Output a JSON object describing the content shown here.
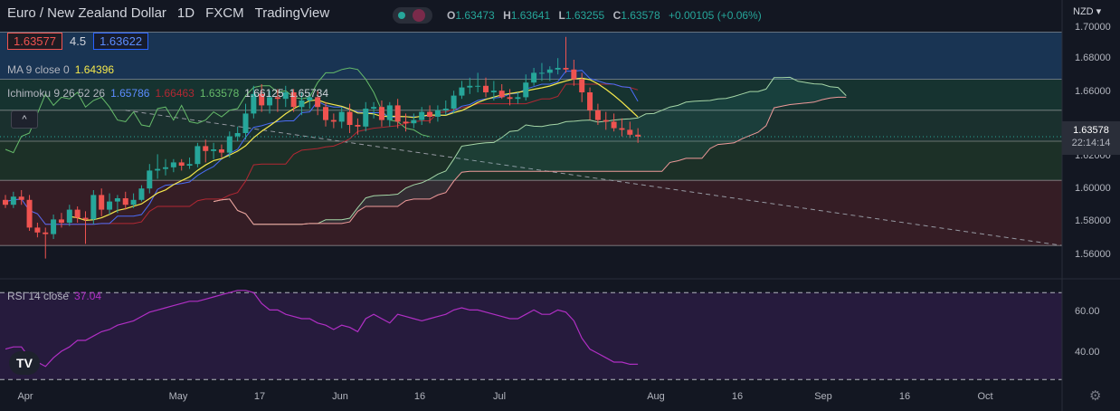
{
  "header": {
    "symbol": "Euro / New Zealand Dollar",
    "interval": "1D",
    "exchange": "FXCM",
    "platform": "TradingView",
    "ohlc": {
      "o_key": "O",
      "o": "1.63473",
      "h_key": "H",
      "h": "1.63641",
      "l_key": "L",
      "l": "1.63255",
      "c_key": "C",
      "c": "1.63578",
      "change": "+0.00105 (+0.06%)"
    },
    "currency": "NZD"
  },
  "quote": {
    "bid": "1.63577",
    "spread": "4.5",
    "ask": "1.63622"
  },
  "indicators": {
    "ma_label": "MA 9 close 0",
    "ma_value": "1.64396",
    "ichimoku_label": "Ichimoku 9 26 52 26",
    "ichimoku_values": [
      "1.65786",
      "1.66463",
      "1.63578",
      "1.66125",
      "1.65734"
    ],
    "rsi_label": "RSI 14 close",
    "rsi_value": "37.04"
  },
  "last_price": {
    "price": "1.63578",
    "countdown": "22:14:14"
  },
  "collapse_glyph": "^",
  "logo_text": "TV",
  "colors": {
    "background": "#131722",
    "up": "#26a69a",
    "down": "#ef5350",
    "ma": "#f5e84c",
    "tenkan": "#4a6cf7",
    "kijun": "#b22833",
    "chikou": "#66bb6a",
    "span_a": "#a5d6a7",
    "span_b": "#ef9a9a",
    "rsi": "#b02fc4"
  },
  "chart_data": [
    {
      "type": "candlestick",
      "title": "Euro / New Zealand Dollar, 1D, FXCM",
      "y_ticks": [
        "1.70000",
        "1.68000",
        "1.66000",
        "1.64000",
        "1.62000",
        "1.60000",
        "1.58000",
        "1.56000"
      ],
      "ylim": [
        1.553,
        1.703
      ],
      "x_ticks": [
        "Apr",
        "May",
        "17",
        "Jun",
        "16",
        "Jul",
        "Aug",
        "16",
        "Sep",
        "16",
        "Oct"
      ],
      "zones": [
        {
          "from": 1.671,
          "to": 1.7,
          "color": "#1b3a5c"
        },
        {
          "from": 1.652,
          "to": 1.671,
          "color": "#173832"
        },
        {
          "from": 1.633,
          "to": 1.652,
          "color": "#1c3530"
        },
        {
          "from": 1.609,
          "to": 1.633,
          "color": "#1e3528"
        },
        {
          "from": 1.569,
          "to": 1.609,
          "color": "#3c1f26"
        }
      ],
      "trendline": {
        "from_index": 15,
        "from_value": 1.652,
        "to_index": 132,
        "to_value": 1.569
      },
      "open": [
        1.597,
        1.594,
        1.599,
        1.597,
        1.58,
        1.577,
        1.576,
        1.585,
        1.583,
        1.591,
        1.586,
        1.585,
        1.6,
        1.591,
        1.596,
        1.598,
        1.594,
        1.597,
        1.604,
        1.615,
        1.616,
        1.617,
        1.62,
        1.618,
        1.619,
        1.63,
        1.627,
        1.628,
        1.626,
        1.636,
        1.638,
        1.65,
        1.662,
        1.655,
        1.66,
        1.659,
        1.663,
        1.654,
        1.658,
        1.66,
        1.654,
        1.646,
        1.645,
        1.651,
        1.643,
        1.642,
        1.653,
        1.654,
        1.646,
        1.655,
        1.645,
        1.644,
        1.646,
        1.651,
        1.648,
        1.652,
        1.653,
        1.661,
        1.666,
        1.667,
        1.667,
        1.663,
        1.664,
        1.66,
        1.659,
        1.66,
        1.669,
        1.675,
        1.675,
        1.677,
        1.678,
        1.677,
        1.671,
        1.663,
        1.652,
        1.646,
        1.645,
        1.641,
        1.64,
        1.637
      ],
      "high": [
        1.6,
        1.602,
        1.603,
        1.6,
        1.583,
        1.58,
        1.588,
        1.589,
        1.594,
        1.593,
        1.59,
        1.603,
        1.604,
        1.601,
        1.6,
        1.602,
        1.601,
        1.606,
        1.619,
        1.625,
        1.622,
        1.622,
        1.622,
        1.623,
        1.632,
        1.634,
        1.632,
        1.631,
        1.639,
        1.642,
        1.656,
        1.667,
        1.668,
        1.664,
        1.665,
        1.667,
        1.665,
        1.663,
        1.663,
        1.664,
        1.657,
        1.65,
        1.654,
        1.656,
        1.647,
        1.657,
        1.657,
        1.658,
        1.657,
        1.659,
        1.65,
        1.65,
        1.654,
        1.655,
        1.655,
        1.658,
        1.664,
        1.67,
        1.672,
        1.675,
        1.672,
        1.67,
        1.668,
        1.665,
        1.663,
        1.674,
        1.678,
        1.681,
        1.679,
        1.684,
        1.697,
        1.683,
        1.675,
        1.666,
        1.656,
        1.651,
        1.65,
        1.647,
        1.645,
        1.641
      ],
      "low": [
        1.592,
        1.592,
        1.594,
        1.578,
        1.574,
        1.561,
        1.573,
        1.58,
        1.581,
        1.583,
        1.57,
        1.582,
        1.587,
        1.588,
        1.589,
        1.591,
        1.592,
        1.596,
        1.601,
        1.61,
        1.612,
        1.614,
        1.615,
        1.616,
        1.617,
        1.62,
        1.622,
        1.623,
        1.623,
        1.633,
        1.634,
        1.647,
        1.651,
        1.65,
        1.651,
        1.654,
        1.651,
        1.649,
        1.653,
        1.649,
        1.642,
        1.641,
        1.641,
        1.638,
        1.637,
        1.639,
        1.647,
        1.642,
        1.642,
        1.641,
        1.639,
        1.641,
        1.643,
        1.644,
        1.645,
        1.649,
        1.65,
        1.659,
        1.662,
        1.663,
        1.66,
        1.658,
        1.659,
        1.655,
        1.656,
        1.658,
        1.667,
        1.67,
        1.67,
        1.674,
        1.675,
        1.667,
        1.657,
        1.646,
        1.643,
        1.64,
        1.639,
        1.636,
        1.635,
        1.632
      ],
      "close": [
        1.594,
        1.599,
        1.597,
        1.58,
        1.577,
        1.576,
        1.585,
        1.583,
        1.591,
        1.586,
        1.585,
        1.6,
        1.591,
        1.596,
        1.598,
        1.594,
        1.597,
        1.604,
        1.615,
        1.616,
        1.617,
        1.62,
        1.618,
        1.619,
        1.63,
        1.627,
        1.628,
        1.626,
        1.636,
        1.638,
        1.65,
        1.662,
        1.655,
        1.66,
        1.659,
        1.663,
        1.654,
        1.658,
        1.66,
        1.654,
        1.646,
        1.645,
        1.651,
        1.643,
        1.642,
        1.653,
        1.654,
        1.646,
        1.655,
        1.645,
        1.644,
        1.646,
        1.651,
        1.648,
        1.652,
        1.653,
        1.661,
        1.666,
        1.667,
        1.667,
        1.663,
        1.664,
        1.66,
        1.659,
        1.66,
        1.669,
        1.675,
        1.675,
        1.677,
        1.678,
        1.677,
        1.671,
        1.663,
        1.652,
        1.646,
        1.645,
        1.641,
        1.64,
        1.637,
        1.6358
      ]
    },
    {
      "type": "line",
      "title": "RSI 14 close",
      "y_ticks": [
        "60.00",
        "40.00"
      ],
      "ylim": [
        28,
        73
      ],
      "bands": [
        70,
        30
      ],
      "values": [
        44,
        45,
        45,
        40,
        38,
        36,
        40,
        43,
        45,
        48,
        48,
        50,
        52,
        53,
        55,
        56,
        57,
        59,
        61,
        62,
        63,
        64,
        65,
        66,
        66,
        67,
        68,
        69,
        70,
        71,
        71,
        70,
        65,
        62,
        62,
        60,
        59,
        58,
        58,
        56,
        55,
        53,
        55,
        54,
        52,
        58,
        60,
        58,
        56,
        60,
        59,
        58,
        57,
        58,
        59,
        60,
        62,
        63,
        62,
        62,
        61,
        60,
        59,
        58,
        58,
        60,
        62,
        60,
        60,
        62,
        61,
        57,
        49,
        44,
        42,
        40,
        38,
        38,
        37,
        37.04
      ]
    }
  ]
}
